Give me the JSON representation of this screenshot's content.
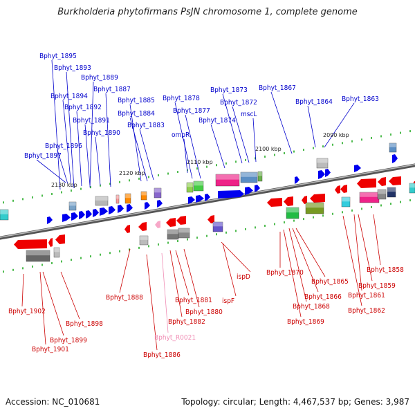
{
  "title": "Burkholderia phytofirmans PsJN chromosome 1, complete genome",
  "footer": {
    "accession": "Accession: NC_010681",
    "summary": "Topology: circular; Length: 4,467,537 bp; Genes: 3,987"
  },
  "colors": {
    "forward_label": "#0000cc",
    "reverse_label": "#cc0000",
    "rna_label": "#f08cb4",
    "forward_arrow": "#0000ee",
    "reverse_arrow": "#ee0000",
    "backbone": "#777777",
    "tick": "#22aa22"
  },
  "scale_labels": [
    "2130 kbp",
    "2120 kbp",
    "2110 kbp",
    "2100 kbp",
    "2090 kbp"
  ],
  "top_labels": [
    "Bphyt_1895",
    "Bphyt_1893",
    "Bphyt_1889",
    "Bphyt_1887",
    "Bphyt_1894",
    "Bphyt_1885",
    "Bphyt_1892",
    "Bphyt_1884",
    "Bphyt_1891",
    "Bphyt_1883",
    "Bphyt_1890",
    "Bphyt_1896",
    "Bphyt_1897",
    "Bphyt_1878",
    "Bphyt_1877",
    "Bphyt_1873",
    "Bphyt_1872",
    "Bphyt_1874",
    "mscL",
    "Bphyt_1867",
    "Bphyt_1864",
    "Bphyt_1863",
    "ompR"
  ],
  "bottom_labels": [
    "Bphyt_1902",
    "Bphyt_1899",
    "Bphyt_1901",
    "Bphyt_1898",
    "Bphyt_1888",
    "Bphyt_1881",
    "Bphyt_1880",
    "Bphyt_1882",
    "Bphyt_R0021",
    "Bphyt_1886",
    "ispF",
    "ispD",
    "Bphyt_1870",
    "Bphyt_1865",
    "Bphyt_1866",
    "Bphyt_1868",
    "Bphyt_1869",
    "Bphyt_1858",
    "Bphyt_1859",
    "Bphyt_1861",
    "Bphyt_1862"
  ]
}
